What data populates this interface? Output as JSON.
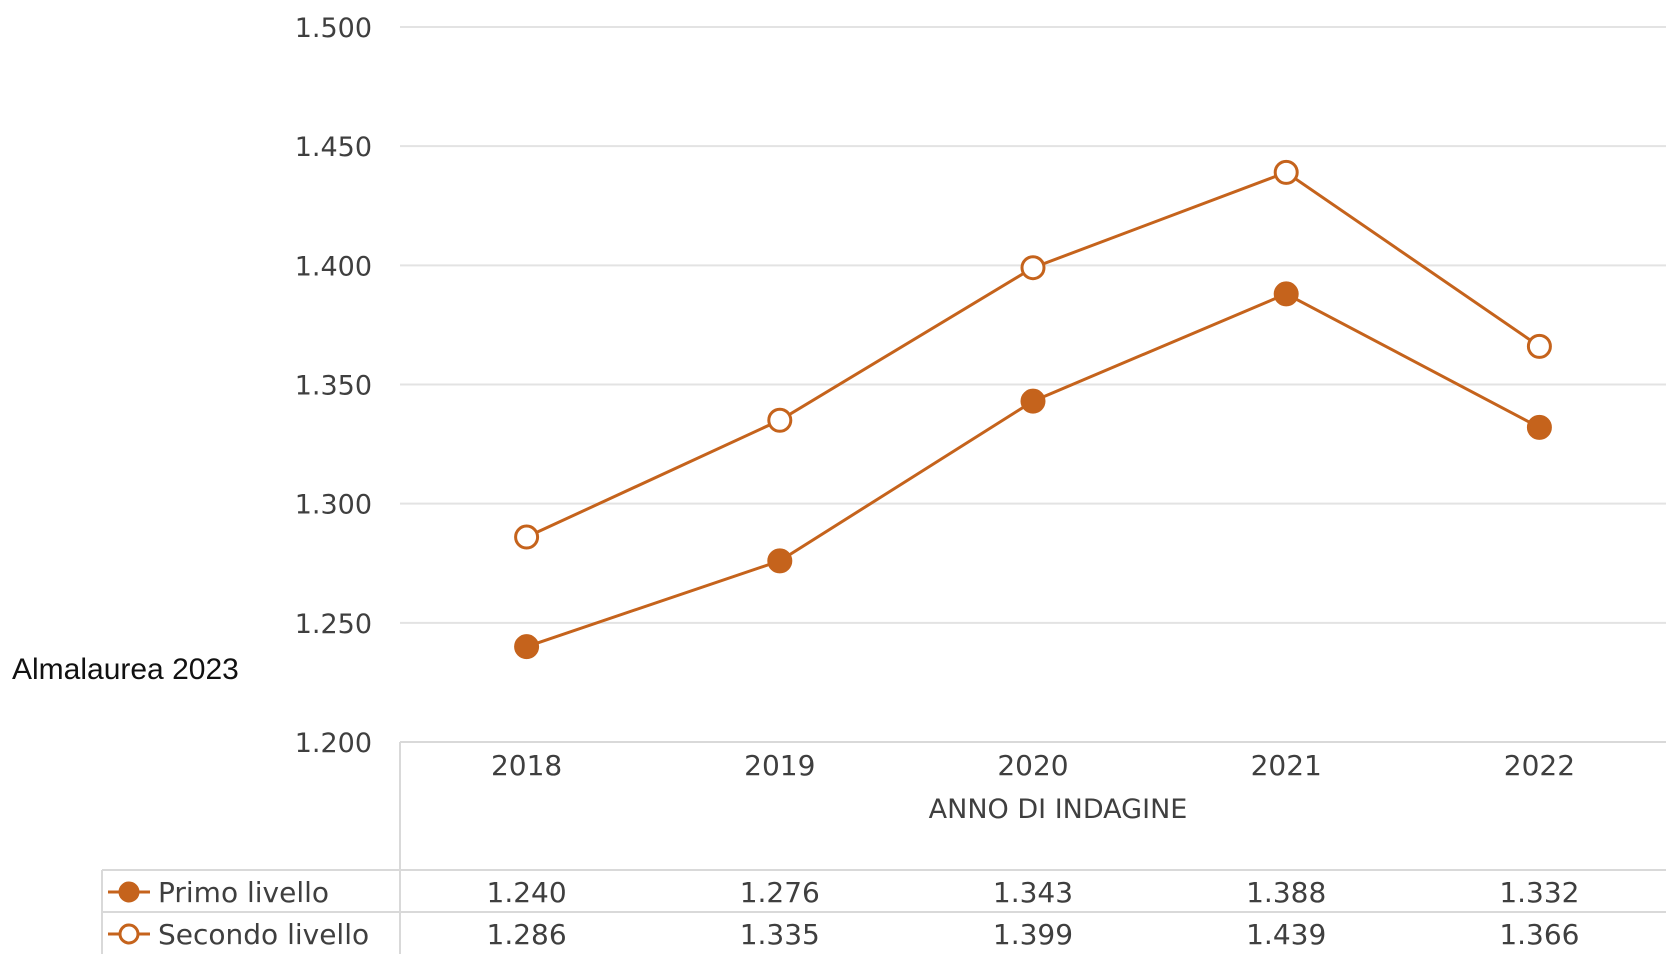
{
  "source_note": "Almalaurea 2023",
  "chart_data": {
    "type": "line",
    "categories": [
      "2018",
      "2019",
      "2020",
      "2021",
      "2022"
    ],
    "xlabel": "ANNO DI INDAGINE",
    "ylabel": "",
    "ylim": [
      1200,
      1500
    ],
    "yticks": [
      1200,
      1250,
      1300,
      1350,
      1400,
      1450,
      1500
    ],
    "ytick_labels": [
      "1.200",
      "1.250",
      "1.300",
      "1.350",
      "1.400",
      "1.450",
      "1.500"
    ],
    "grid": true,
    "legend": "data table below chart",
    "series": [
      {
        "name": "Primo livello",
        "values": [
          1240,
          1276,
          1343,
          1388,
          1332
        ],
        "labels": [
          "1.240",
          "1.276",
          "1.343",
          "1.388",
          "1.332"
        ],
        "marker": "filled-circle",
        "color": "#c5631c"
      },
      {
        "name": "Secondo livello",
        "values": [
          1286,
          1335,
          1399,
          1439,
          1366
        ],
        "labels": [
          "1.286",
          "1.335",
          "1.399",
          "1.439",
          "1.366"
        ],
        "marker": "hollow-circle",
        "color": "#c5631c"
      }
    ]
  }
}
